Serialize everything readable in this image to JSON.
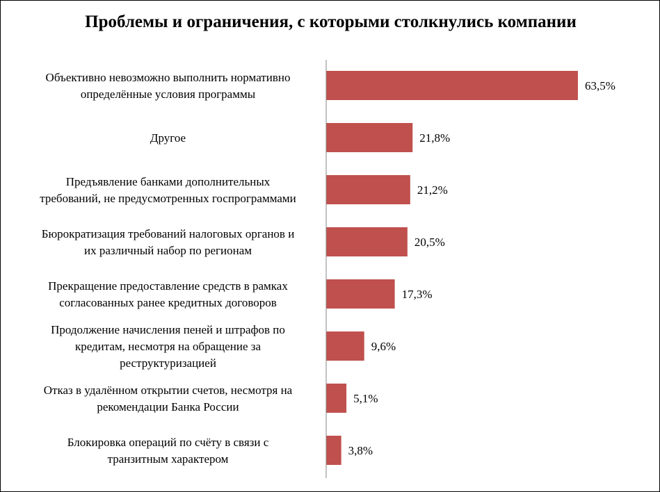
{
  "chart_data": {
    "type": "bar",
    "orientation": "horizontal",
    "title": "Проблемы и ограничения, с которыми столкнулись компании",
    "categories": [
      [
        "Объективно невозможно выполнить нормативно",
        "определённые условия программы"
      ],
      [
        "Другое"
      ],
      [
        "Предъявление банками дополнительных",
        "требований, не предусмотренных госпрограммами"
      ],
      [
        "Бюрократизация требований налоговых органов и",
        "их различный набор по регионам"
      ],
      [
        "Прекращение предоставление средств в рамках",
        "согласованных ранее кредитных договоров"
      ],
      [
        "Продолжение начисления пеней и штрафов по",
        "кредитам, несмотря на обращение за",
        "реструктуризацией"
      ],
      [
        "Отказ в удалённом открытии счетов, несмотря на",
        "рекомендации Банка России"
      ],
      [
        "Блокировка операций по счёту в связи с",
        "транзитным характером"
      ]
    ],
    "values": [
      63.5,
      21.8,
      21.2,
      20.5,
      17.3,
      9.6,
      5.1,
      3.8
    ],
    "value_labels": [
      "63,5%",
      "21,8%",
      "21,2%",
      "20,5%",
      "17,3%",
      "9,6%",
      "5,1%",
      "3,8%"
    ],
    "xlim": [
      0,
      70
    ],
    "xlabel": "",
    "ylabel": "",
    "grid": false,
    "legend": "none",
    "bar_color": "#C0504D",
    "axis_color": "#868686"
  }
}
